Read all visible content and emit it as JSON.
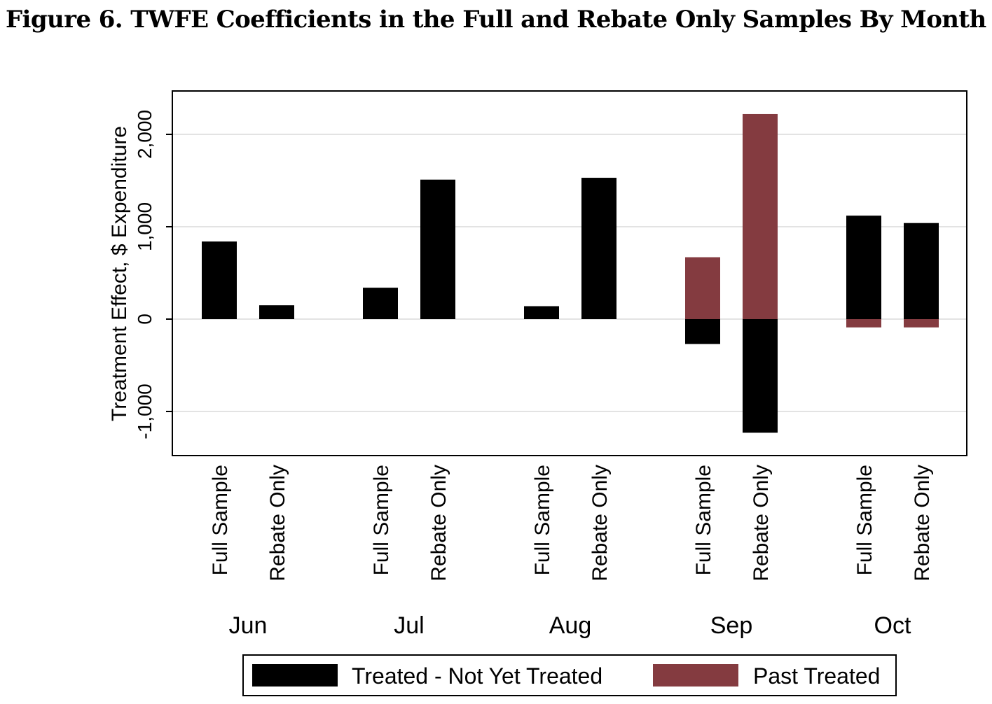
{
  "figure": {
    "title": "Figure 6.  TWFE Coefficients in the Full and Rebate Only Samples By Month"
  },
  "chart_data": {
    "type": "bar",
    "stacked": true,
    "ylabel": "Treatment Effect, $ Expenditure",
    "xlabel": "",
    "ylim": [
      -1450,
      2450
    ],
    "yticks": [
      -1000,
      0,
      1000,
      2000
    ],
    "ytick_labels": [
      "-1,000",
      "0",
      "1,000",
      "2,000"
    ],
    "grid": true,
    "legend_position": "bottom",
    "months": [
      "Jun",
      "Jul",
      "Aug",
      "Sep",
      "Oct"
    ],
    "samples": [
      "Full Sample",
      "Rebate Only"
    ],
    "categories": [
      "Jun Full Sample",
      "Jun Rebate Only",
      "Jul Full Sample",
      "Jul Rebate Only",
      "Aug Full Sample",
      "Aug Rebate Only",
      "Sep Full Sample",
      "Sep Rebate Only",
      "Oct Full Sample",
      "Oct Rebate Only"
    ],
    "series": [
      {
        "name": "Treated - Not Yet Treated",
        "color": "#000000",
        "values": [
          840,
          150,
          340,
          1510,
          140,
          1530,
          -270,
          -1230,
          1120,
          1040
        ]
      },
      {
        "name": "Past Treated",
        "color": "#843b40",
        "values": [
          0,
          0,
          0,
          0,
          0,
          0,
          670,
          2220,
          -90,
          -90
        ]
      }
    ]
  }
}
